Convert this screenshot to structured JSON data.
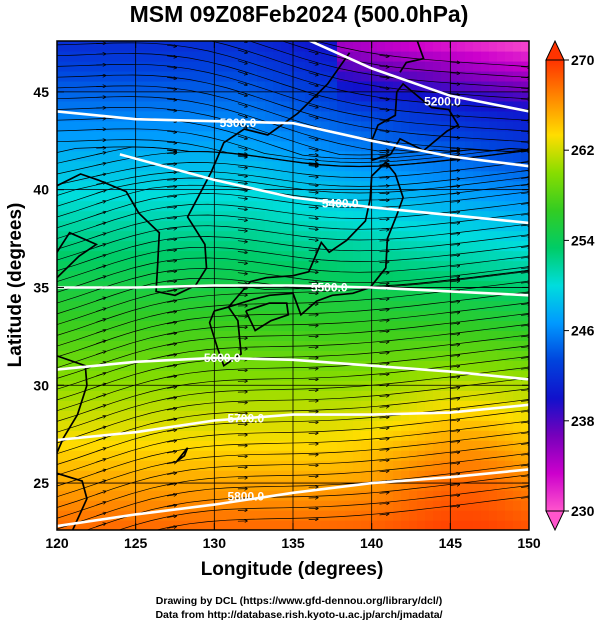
{
  "title": "MSM 09Z08Feb2024 (500.0hPa)",
  "axes": {
    "xlabel": "Longitude (degrees)",
    "ylabel": "Latitude  (degrees)",
    "xlim": [
      120,
      150
    ],
    "ylim": [
      22.6,
      47.6
    ],
    "xticks": [
      "120",
      "125",
      "130",
      "135",
      "140",
      "145",
      "150"
    ],
    "yticks": [
      "25",
      "30",
      "35",
      "40",
      "45"
    ],
    "grid_lon": [
      125,
      130,
      135,
      140,
      145
    ],
    "grid_lat": [
      25,
      30,
      35,
      40,
      45
    ]
  },
  "colorbar": {
    "min": 230,
    "max": 270,
    "ticks": [
      "230",
      "238",
      "246",
      "254",
      "262",
      "270"
    ],
    "colors": [
      "#ff55cc",
      "#cc00cc",
      "#7700bb",
      "#1111cc",
      "#0044dd",
      "#0099ff",
      "#00dddd",
      "#00cc66",
      "#33cc22",
      "#88dd00",
      "#ffdd00",
      "#ff8800",
      "#ff3300"
    ],
    "extend": "both"
  },
  "contours": [
    {
      "label": "5200.0",
      "points": [
        [
          120,
          51.0
        ],
        [
          130,
          49.3
        ],
        [
          135,
          48.0
        ],
        [
          140,
          46.2
        ],
        [
          145,
          44.8
        ],
        [
          150,
          44.0
        ]
      ],
      "label_at": [
        144.5,
        44.5
      ]
    },
    {
      "label": "5300.0",
      "points": [
        [
          120,
          44.0
        ],
        [
          125,
          43.6
        ],
        [
          130,
          43.5
        ],
        [
          135,
          43.4
        ],
        [
          140,
          42.5
        ],
        [
          145,
          41.7
        ],
        [
          150,
          41.2
        ]
      ],
      "label_at": [
        131.5,
        43.4
      ]
    },
    {
      "label": "5400.0",
      "points": [
        [
          124,
          41.8
        ],
        [
          130,
          40.5
        ],
        [
          135,
          39.6
        ],
        [
          140,
          39.1
        ],
        [
          145,
          38.7
        ],
        [
          150,
          38.3
        ]
      ],
      "label_at": [
        138.0,
        39.3
      ]
    },
    {
      "label": "5500.0",
      "points": [
        [
          120,
          35.0
        ],
        [
          125,
          35.0
        ],
        [
          130,
          35.1
        ],
        [
          135,
          35.1
        ],
        [
          140,
          35.0
        ],
        [
          145,
          34.8
        ],
        [
          150,
          34.6
        ]
      ],
      "label_at": [
        137.3,
        35.0
      ]
    },
    {
      "label": "5600.0",
      "points": [
        [
          120,
          30.8
        ],
        [
          125,
          31.2
        ],
        [
          130,
          31.4
        ],
        [
          135,
          31.3
        ],
        [
          140,
          31.0
        ],
        [
          145,
          30.7
        ],
        [
          150,
          30.3
        ]
      ],
      "label_at": [
        130.5,
        31.4
      ]
    },
    {
      "label": "5700.0",
      "points": [
        [
          120,
          27.2
        ],
        [
          125,
          27.6
        ],
        [
          130,
          28.2
        ],
        [
          135,
          28.5
        ],
        [
          140,
          28.5
        ],
        [
          145,
          28.6
        ],
        [
          150,
          29.0
        ]
      ],
      "label_at": [
        132.0,
        28.3
      ]
    },
    {
      "label": "5800.0",
      "points": [
        [
          120,
          22.8
        ],
        [
          125,
          23.4
        ],
        [
          130,
          23.9
        ],
        [
          135,
          24.5
        ],
        [
          140,
          25.0
        ],
        [
          145,
          25.3
        ],
        [
          150,
          25.7
        ]
      ],
      "label_at": [
        132.0,
        24.3
      ]
    }
  ],
  "credits": [
    "Drawing by DCL (https://www.gfd-dennou.org/library/dcl/)",
    "Data from http://database.rish.kyoto-u.ac.jp/arch/jmadata/"
  ]
}
